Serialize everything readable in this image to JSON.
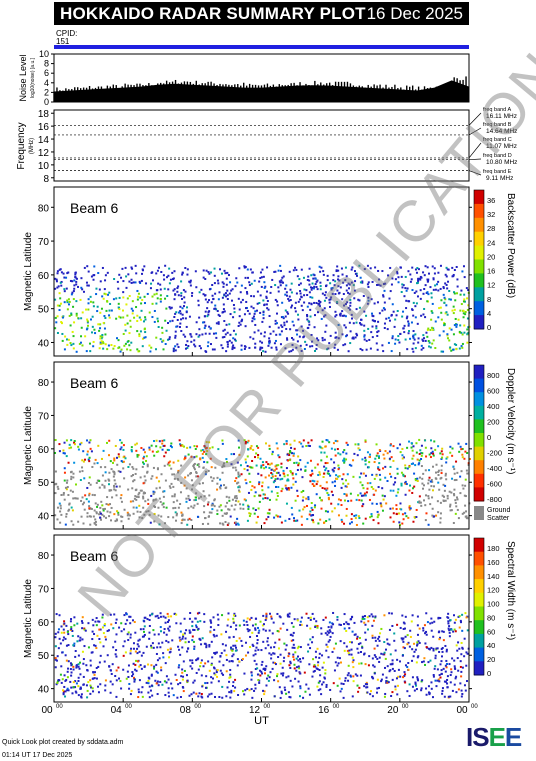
{
  "header": {
    "title": "HOKKAIDO RADAR SUMMARY PLOT",
    "date": "16 Dec 2025",
    "cpid_label": "CPID:",
    "cpid_value": "151"
  },
  "colors": {
    "title_bg": "#000000",
    "cpid_bar": "#2020e0",
    "panel_bg": "#ffffff",
    "ground_scatter": "#888888"
  },
  "chart_data": [
    {
      "type": "area",
      "ylabel": "Noise Level",
      "ylabel_sub": "log<sub>10</sub>(noise) [a.u.]",
      "ylim": [
        0,
        10
      ],
      "yticks": [
        0,
        2,
        4,
        6,
        8,
        10
      ],
      "x": [
        0,
        1,
        2,
        3,
        4,
        5,
        6,
        7,
        8,
        9,
        10,
        11,
        12,
        13,
        14,
        15,
        16,
        17,
        18,
        19,
        20,
        21,
        22,
        23,
        24
      ],
      "values": [
        2.2,
        2.4,
        2.6,
        2.8,
        3.0,
        3.2,
        3.6,
        3.8,
        3.6,
        3.4,
        3.2,
        3.0,
        3.0,
        3.2,
        3.4,
        3.5,
        3.4,
        3.2,
        3.0,
        2.8,
        2.6,
        2.4,
        3.0,
        4.5,
        3.2
      ]
    },
    {
      "type": "line",
      "ylabel": "Frequency",
      "ylabel_sub": "(MHz)",
      "ylim": [
        7.5,
        18.5
      ],
      "yticks": [
        8,
        10,
        12,
        14,
        16,
        18
      ],
      "bands": [
        {
          "label": "freq band A",
          "freq": "16.11 MHz",
          "value": 16.11
        },
        {
          "label": "freq band B",
          "freq": "14.64 MHz",
          "value": 14.64
        },
        {
          "label": "freq band C",
          "freq": "11.07 MHz",
          "value": 11.07
        },
        {
          "label": "freq band D",
          "freq": "10.80 MHz",
          "value": 10.8
        },
        {
          "label": "freq band E",
          "freq": "9.11 MHz",
          "value": 9.11
        }
      ]
    },
    {
      "type": "heatmap",
      "panel_label": "Beam  6",
      "ylabel": "Magnetic Latitude",
      "ylim": [
        36,
        86
      ],
      "yticks": [
        40,
        50,
        60,
        70,
        80
      ],
      "colorbar_label": "Backscatter Power (dB)",
      "colorbar_ticks": [
        "36",
        "32",
        "28",
        "24",
        "20",
        "16",
        "12",
        "8",
        "4",
        "0"
      ],
      "colorbar_colors": [
        "#d00000",
        "#ff5000",
        "#ff9000",
        "#ffd000",
        "#e0f000",
        "#80e000",
        "#20c020",
        "#00a0a0",
        "#0060e0",
        "#2020c0"
      ]
    },
    {
      "type": "heatmap",
      "panel_label": "Beam  6",
      "ylabel": "Magnetic Latitude",
      "ylim": [
        36,
        86
      ],
      "yticks": [
        40,
        50,
        60,
        70,
        80
      ],
      "colorbar_label": "Doppler Velocity (m s⁻¹)",
      "colorbar_ticks": [
        "800",
        "600",
        "400",
        "200",
        "0",
        "-200",
        "-400",
        "-600",
        "-800"
      ],
      "colorbar_colors": [
        "#2020c0",
        "#0050e0",
        "#0090e0",
        "#00b0a0",
        "#20c020",
        "#80e000",
        "#e0d000",
        "#ff8000",
        "#ff3000",
        "#d00000"
      ],
      "ground_scatter_label": [
        "Ground",
        "Scatter"
      ]
    },
    {
      "type": "heatmap",
      "panel_label": "Beam  6",
      "ylabel": "Magnetic Latitude",
      "ylim": [
        36,
        86
      ],
      "yticks": [
        40,
        50,
        60,
        70,
        80
      ],
      "colorbar_label": "Spectral Width (m s⁻¹)",
      "colorbar_ticks": [
        "180",
        "160",
        "140",
        "120",
        "100",
        "80",
        "60",
        "40",
        "20",
        "0"
      ],
      "colorbar_colors": [
        "#d00000",
        "#ff5000",
        "#ff9000",
        "#ffd000",
        "#e0f000",
        "#80e000",
        "#20c020",
        "#00a0a0",
        "#0060e0",
        "#2020c0"
      ]
    }
  ],
  "xaxis": {
    "label": "UT",
    "ticks": [
      {
        "h": "00",
        "m": "00"
      },
      {
        "h": "04",
        "m": "00"
      },
      {
        "h": "08",
        "m": "00"
      },
      {
        "h": "12",
        "m": "00"
      },
      {
        "h": "16",
        "m": "00"
      },
      {
        "h": "20",
        "m": "00"
      },
      {
        "h": "00",
        "m": "00"
      }
    ]
  },
  "footer": {
    "line1": "Quick Look plot created by sddata.adm",
    "line2": "01:14 UT 17 Dec 2025"
  },
  "logo": {
    "text": "ISEE"
  },
  "watermark": "NOT FOR PUBLICATION"
}
